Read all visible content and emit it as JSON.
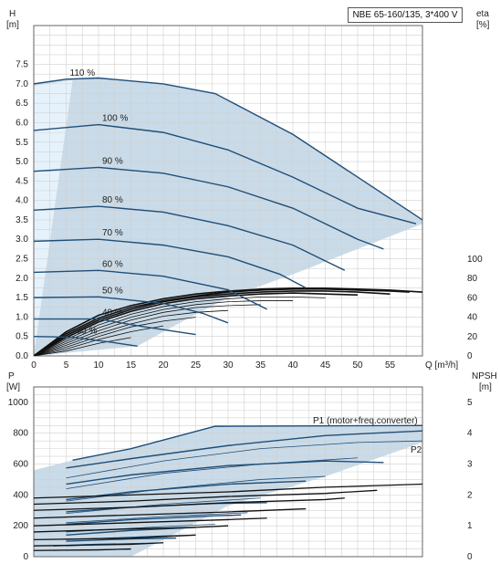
{
  "title": "NBE 65-160/135, 3*400 V",
  "chart_data": [
    {
      "type": "line",
      "name": "QH",
      "title": "NBE 65-160/135, 3*400 V",
      "left_axis": {
        "label": [
          "H",
          "[m]"
        ],
        "ticks": [
          "0.0",
          "0.5",
          "1.0",
          "1.5",
          "2.0",
          "2.5",
          "3.0",
          "3.5",
          "4.0",
          "4.5",
          "5.0",
          "5.5",
          "6.0",
          "6.5",
          "7.0",
          "7.5"
        ],
        "range": [
          0,
          8.5
        ]
      },
      "right_axis": {
        "label": [
          "eta",
          "[%]"
        ],
        "ticks": [
          "0",
          "20",
          "40",
          "60",
          "80",
          "100"
        ],
        "range": [
          0,
          100
        ]
      },
      "x_axis": {
        "label": "Q [m³/h]",
        "ticks": [
          "0",
          "5",
          "10",
          "15",
          "20",
          "25",
          "30",
          "35",
          "40",
          "45",
          "50",
          "55"
        ],
        "range": [
          0,
          60
        ]
      },
      "grid": true,
      "speed_curves": [
        {
          "label": "110 %",
          "pts": [
            [
              0,
              7.0
            ],
            [
              5,
              7.12
            ],
            [
              10,
              7.15
            ],
            [
              20,
              7.0
            ],
            [
              28,
              6.75
            ],
            [
              40,
              5.7
            ],
            [
              50,
              4.6
            ],
            [
              60,
              3.5
            ]
          ]
        },
        {
          "label": "100 %",
          "pts": [
            [
              0,
              5.8
            ],
            [
              10,
              5.95
            ],
            [
              20,
              5.75
            ],
            [
              30,
              5.3
            ],
            [
              40,
              4.6
            ],
            [
              50,
              3.8
            ],
            [
              59,
              3.4
            ]
          ]
        },
        {
          "label": "90 %",
          "pts": [
            [
              0,
              4.75
            ],
            [
              10,
              4.85
            ],
            [
              20,
              4.7
            ],
            [
              30,
              4.35
            ],
            [
              40,
              3.8
            ],
            [
              50,
              3.0
            ],
            [
              54,
              2.75
            ]
          ]
        },
        {
          "label": "80 %",
          "pts": [
            [
              0,
              3.75
            ],
            [
              10,
              3.85
            ],
            [
              20,
              3.7
            ],
            [
              30,
              3.35
            ],
            [
              40,
              2.85
            ],
            [
              48,
              2.2
            ]
          ]
        },
        {
          "label": "70 %",
          "pts": [
            [
              0,
              2.95
            ],
            [
              10,
              3.0
            ],
            [
              20,
              2.85
            ],
            [
              30,
              2.55
            ],
            [
              38,
              2.1
            ],
            [
              42,
              1.75
            ]
          ]
        },
        {
          "label": "60 %",
          "pts": [
            [
              0,
              2.15
            ],
            [
              10,
              2.2
            ],
            [
              20,
              2.05
            ],
            [
              30,
              1.7
            ],
            [
              36,
              1.2
            ]
          ]
        },
        {
          "label": "50 %",
          "pts": [
            [
              0,
              1.5
            ],
            [
              10,
              1.52
            ],
            [
              20,
              1.35
            ],
            [
              26,
              1.1
            ],
            [
              30,
              0.85
            ]
          ]
        },
        {
          "label": "40 %",
          "pts": [
            [
              0,
              0.95
            ],
            [
              10,
              0.95
            ],
            [
              17,
              0.75
            ],
            [
              25,
              0.55
            ]
          ]
        },
        {
          "label": "30 %",
          "pts": [
            [
              0,
              0.5
            ],
            [
              6,
              0.48
            ],
            [
              12,
              0.35
            ],
            [
              16,
              0.25
            ]
          ]
        }
      ],
      "eta_curves": [
        [
          [
            0,
            0
          ],
          [
            5,
            25
          ],
          [
            10,
            42
          ],
          [
            15,
            52
          ],
          [
            20,
            59
          ],
          [
            25,
            64
          ],
          [
            30,
            67
          ],
          [
            35,
            69
          ],
          [
            40,
            70
          ],
          [
            45,
            70
          ],
          [
            50,
            69
          ],
          [
            55,
            68
          ],
          [
            60,
            66
          ]
        ],
        [
          [
            0,
            0
          ],
          [
            5,
            23
          ],
          [
            10,
            39
          ],
          [
            15,
            50
          ],
          [
            20,
            57
          ],
          [
            25,
            62
          ],
          [
            30,
            66
          ],
          [
            35,
            68
          ],
          [
            40,
            69
          ],
          [
            45,
            69
          ],
          [
            50,
            68
          ],
          [
            55,
            67
          ],
          [
            58,
            66
          ]
        ],
        [
          [
            0,
            0
          ],
          [
            5,
            21
          ],
          [
            10,
            37
          ],
          [
            15,
            48
          ],
          [
            20,
            56
          ],
          [
            25,
            61
          ],
          [
            30,
            64
          ],
          [
            35,
            66
          ],
          [
            40,
            67
          ],
          [
            45,
            67
          ],
          [
            50,
            66
          ],
          [
            55,
            64
          ]
        ],
        [
          [
            0,
            0
          ],
          [
            5,
            19
          ],
          [
            10,
            35
          ],
          [
            15,
            46
          ],
          [
            20,
            54
          ],
          [
            25,
            59
          ],
          [
            30,
            62
          ],
          [
            35,
            64
          ],
          [
            40,
            65
          ],
          [
            45,
            64
          ],
          [
            50,
            63
          ]
        ],
        [
          [
            0,
            0
          ],
          [
            5,
            17
          ],
          [
            10,
            32
          ],
          [
            15,
            43
          ],
          [
            20,
            51
          ],
          [
            25,
            56
          ],
          [
            30,
            59
          ],
          [
            35,
            61
          ],
          [
            40,
            61
          ],
          [
            45,
            60
          ]
        ],
        [
          [
            0,
            0
          ],
          [
            5,
            15
          ],
          [
            10,
            29
          ],
          [
            15,
            40
          ],
          [
            20,
            48
          ],
          [
            25,
            53
          ],
          [
            30,
            56
          ],
          [
            35,
            57
          ],
          [
            40,
            57
          ]
        ],
        [
          [
            0,
            0
          ],
          [
            5,
            13
          ],
          [
            10,
            26
          ],
          [
            15,
            37
          ],
          [
            20,
            45
          ],
          [
            25,
            50
          ],
          [
            30,
            52
          ],
          [
            35,
            53
          ]
        ],
        [
          [
            0,
            0
          ],
          [
            5,
            11
          ],
          [
            10,
            23
          ],
          [
            15,
            33
          ],
          [
            20,
            41
          ],
          [
            25,
            45
          ],
          [
            30,
            47
          ]
        ],
        [
          [
            0,
            0
          ],
          [
            5,
            9
          ],
          [
            10,
            20
          ],
          [
            15,
            30
          ],
          [
            20,
            36
          ],
          [
            25,
            40
          ]
        ],
        [
          [
            0,
            0
          ],
          [
            5,
            7
          ],
          [
            10,
            17
          ],
          [
            15,
            25
          ],
          [
            20,
            31
          ]
        ],
        [
          [
            0,
            0
          ],
          [
            5,
            5
          ],
          [
            10,
            13
          ],
          [
            15,
            19
          ]
        ]
      ]
    },
    {
      "type": "line",
      "name": "power",
      "left_axis": {
        "label": [
          "P",
          "[W]"
        ],
        "ticks": [
          "0",
          "200",
          "400",
          "600",
          "800",
          "1000"
        ],
        "range": [
          0,
          1100
        ]
      },
      "right_axis": {
        "label": [
          "NPSH",
          "[m]"
        ],
        "ticks": [
          "0",
          "1",
          "2",
          "3",
          "4",
          "5"
        ],
        "range": [
          0,
          5.5
        ]
      },
      "x_axis": {
        "range": [
          0,
          60
        ]
      },
      "grid": true,
      "legend_labels": [
        "P1 (motor+freq.converter)",
        "P2"
      ],
      "p1_curves": [
        [
          [
            6,
            625
          ],
          [
            15,
            700
          ],
          [
            28,
            845
          ],
          [
            60,
            850
          ]
        ],
        [
          [
            5,
            575
          ],
          [
            15,
            635
          ],
          [
            30,
            720
          ],
          [
            45,
            785
          ],
          [
            60,
            815
          ]
        ],
        [
          [
            5,
            470
          ],
          [
            15,
            530
          ],
          [
            30,
            590
          ],
          [
            45,
            620
          ],
          [
            54,
            610
          ]
        ],
        [
          [
            5,
            370
          ],
          [
            15,
            420
          ],
          [
            30,
            470
          ],
          [
            42,
            490
          ]
        ],
        [
          [
            5,
            290
          ],
          [
            15,
            320
          ],
          [
            28,
            345
          ],
          [
            36,
            350
          ]
        ],
        [
          [
            5,
            210
          ],
          [
            15,
            240
          ],
          [
            28,
            265
          ],
          [
            32,
            270
          ]
        ],
        [
          [
            5,
            140
          ],
          [
            15,
            170
          ],
          [
            25,
            190
          ]
        ],
        [
          [
            5,
            100
          ],
          [
            15,
            115
          ],
          [
            22,
            120
          ]
        ],
        [
          [
            3,
            70
          ],
          [
            10,
            80
          ],
          [
            17,
            85
          ]
        ]
      ],
      "p2_curves": [
        [
          [
            5,
            510
          ],
          [
            20,
            620
          ],
          [
            35,
            700
          ],
          [
            50,
            740
          ],
          [
            60,
            750
          ]
        ],
        [
          [
            5,
            440
          ],
          [
            20,
            540
          ],
          [
            35,
            600
          ],
          [
            50,
            640
          ]
        ],
        [
          [
            5,
            360
          ],
          [
            20,
            440
          ],
          [
            35,
            500
          ],
          [
            45,
            520
          ]
        ],
        [
          [
            5,
            280
          ],
          [
            20,
            340
          ],
          [
            35,
            380
          ]
        ],
        [
          [
            5,
            220
          ],
          [
            20,
            260
          ],
          [
            33,
            285
          ]
        ],
        [
          [
            5,
            160
          ],
          [
            20,
            195
          ],
          [
            28,
            210
          ]
        ],
        [
          [
            5,
            110
          ],
          [
            20,
            135
          ],
          [
            25,
            140
          ]
        ],
        [
          [
            5,
            70
          ],
          [
            15,
            85
          ],
          [
            20,
            90
          ]
        ],
        [
          [
            3,
            40
          ],
          [
            10,
            45
          ],
          [
            15,
            48
          ]
        ]
      ],
      "npsh_curves": [
        [
          [
            0,
            1.9
          ],
          [
            15,
            2.0
          ],
          [
            30,
            2.1
          ],
          [
            45,
            2.25
          ],
          [
            60,
            2.35
          ]
        ],
        [
          [
            0,
            1.7
          ],
          [
            15,
            1.8
          ],
          [
            30,
            1.95
          ],
          [
            45,
            2.05
          ],
          [
            53,
            2.15
          ]
        ],
        [
          [
            0,
            1.5
          ],
          [
            15,
            1.6
          ],
          [
            30,
            1.75
          ],
          [
            45,
            1.85
          ],
          [
            48,
            1.9
          ]
        ],
        [
          [
            0,
            1.25
          ],
          [
            15,
            1.35
          ],
          [
            30,
            1.45
          ],
          [
            42,
            1.55
          ]
        ],
        [
          [
            0,
            1.0
          ],
          [
            15,
            1.1
          ],
          [
            30,
            1.2
          ],
          [
            36,
            1.25
          ]
        ],
        [
          [
            0,
            0.8
          ],
          [
            15,
            0.9
          ],
          [
            25,
            0.95
          ],
          [
            30,
            1.0
          ]
        ],
        [
          [
            0,
            0.55
          ],
          [
            15,
            0.6
          ],
          [
            25,
            0.7
          ]
        ],
        [
          [
            0,
            0.35
          ],
          [
            15,
            0.4
          ],
          [
            20,
            0.45
          ]
        ],
        [
          [
            0,
            0.2
          ],
          [
            10,
            0.22
          ],
          [
            15,
            0.25
          ]
        ]
      ]
    }
  ]
}
